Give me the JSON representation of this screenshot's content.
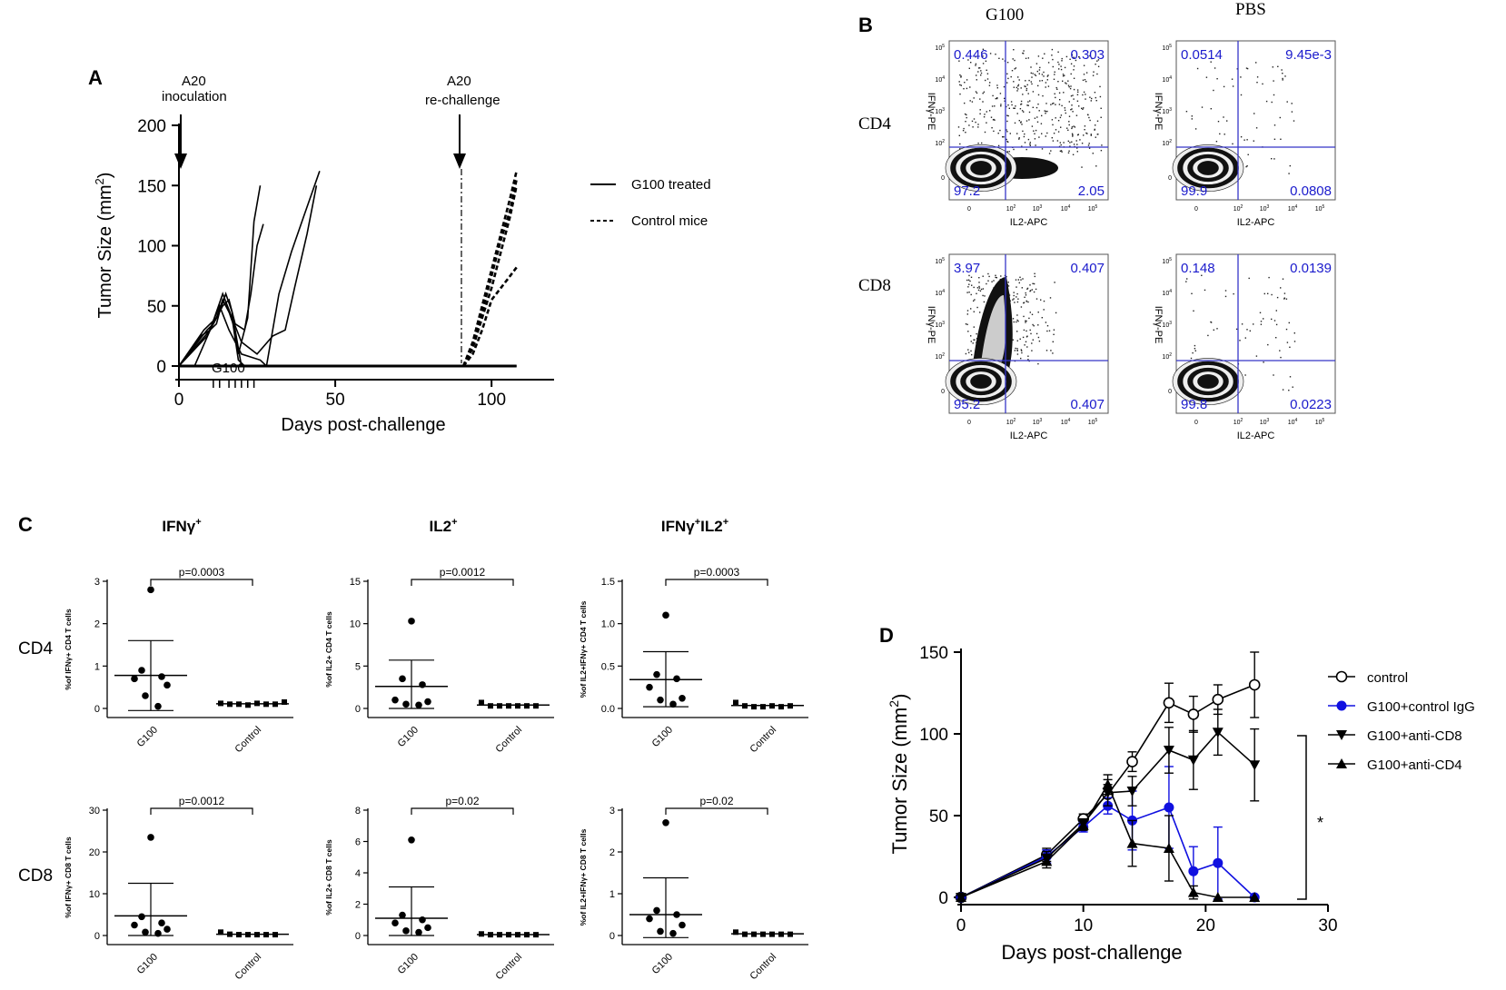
{
  "panels": {
    "A": {
      "letter": "A",
      "annotations": {
        "inoculation_line1": "A20",
        "inoculation_line2": "inoculation",
        "rechallenge_line1": "A20",
        "rechallenge_line2": "re-challenge",
        "treatment": "G100"
      },
      "legend": [
        {
          "label": "G100 treated",
          "style": "solid"
        },
        {
          "label": "Control mice",
          "style": "dashed"
        }
      ],
      "chart_data": {
        "type": "line",
        "xlabel": "Days post-challenge",
        "ylabel": "Tumor Size (mm2)",
        "ylabel_main": "Tumor Size (mm",
        "ylabel_sup": "2",
        "ylabel_end": ")",
        "xlim": [
          0,
          120
        ],
        "ylim": [
          0,
          200
        ],
        "xticks": [
          0,
          50,
          100
        ],
        "yticks": [
          0,
          50,
          100,
          150,
          200
        ],
        "treatment_days": [
          11,
          13,
          16,
          18,
          20,
          22,
          24
        ],
        "inoculation_day": 0,
        "rechallenge_day": 91,
        "series": [
          {
            "name": "G100 treated",
            "style": "solid",
            "x": [
              0,
              5,
              10,
              12,
              14,
              16,
              18,
              20,
              25,
              30,
              35,
              40,
              108
            ],
            "y": [
              0,
              0,
              30,
              40,
              55,
              45,
              30,
              0,
              0,
              0,
              0,
              0,
              0
            ]
          },
          {
            "name": "G100 treated",
            "style": "solid",
            "x": [
              0,
              7,
              10,
              12,
              14,
              17,
              19,
              21,
              24
            ],
            "y": [
              0,
              25,
              30,
              35,
              55,
              40,
              5,
              0,
              0
            ]
          },
          {
            "name": "G100 treated",
            "style": "solid",
            "x": [
              0,
              9,
              11,
              13,
              15,
              17,
              19,
              22,
              24,
              26
            ],
            "y": [
              0,
              30,
              35,
              45,
              60,
              45,
              10,
              40,
              120,
              150
            ]
          },
          {
            "name": "G100 treated",
            "style": "solid",
            "x": [
              0,
              8,
              12,
              14,
              16,
              18,
              21,
              23,
              25,
              27
            ],
            "y": [
              0,
              30,
              40,
              50,
              55,
              35,
              30,
              60,
              100,
              118
            ]
          },
          {
            "name": "G100 treated",
            "style": "solid",
            "x": [
              0,
              10,
              14,
              17,
              20,
              25,
              30,
              34,
              37,
              41,
              44
            ],
            "y": [
              0,
              30,
              60,
              40,
              20,
              10,
              25,
              30,
              65,
              110,
              150
            ]
          },
          {
            "name": "G100 treated",
            "style": "solid",
            "x": [
              0,
              9,
              13,
              16,
              20,
              26,
              28,
              32,
              36,
              40,
              45
            ],
            "y": [
              0,
              25,
              50,
              30,
              10,
              5,
              0,
              60,
              95,
              125,
              162
            ]
          },
          {
            "name": "Control mice",
            "style": "dashed",
            "x": [
              91,
              94,
              97,
              100,
              103,
              106,
              108
            ],
            "y": [
              0,
              20,
              50,
              80,
              110,
              140,
              162
            ]
          },
          {
            "name": "Control mice",
            "style": "dashed",
            "x": [
              91,
              94,
              97,
              100,
              103,
              106,
              108
            ],
            "y": [
              0,
              15,
              40,
              65,
              95,
              125,
              150
            ]
          },
          {
            "name": "Control mice",
            "style": "dashed",
            "x": [
              91,
              94,
              97,
              100,
              103,
              106,
              108
            ],
            "y": [
              0,
              10,
              30,
              55,
              65,
              75,
              82
            ]
          },
          {
            "name": "Control mice",
            "style": "dashed",
            "x": [
              91,
              94,
              97,
              100,
              103,
              106,
              108
            ],
            "y": [
              0,
              18,
              45,
              75,
              105,
              130,
              155
            ]
          }
        ]
      }
    },
    "B": {
      "letter": "B",
      "col_headers": [
        "G100",
        "PBS"
      ],
      "row_headers": [
        "CD4",
        "CD8"
      ],
      "xaxis": "IL2-APC",
      "yaxis": "IFNγ-PE",
      "tick_base": "10",
      "tick_exponents": [
        "2",
        "3",
        "4",
        "5"
      ],
      "tick_zero": "0",
      "plots": [
        {
          "row": "CD4",
          "col": "G100",
          "ul": "0.446",
          "ur": "0.303",
          "ll": "97.2",
          "lr": "2.05"
        },
        {
          "row": "CD4",
          "col": "PBS",
          "ul": "0.0514",
          "ur": "9.45e-3",
          "ll": "99.9",
          "lr": "0.0808"
        },
        {
          "row": "CD8",
          "col": "G100",
          "ul": "3.97",
          "ur": "0.407",
          "ll": "95.2",
          "lr": "0.407"
        },
        {
          "row": "CD8",
          "col": "PBS",
          "ul": "0.148",
          "ur": "0.0139",
          "ll": "99.8",
          "lr": "0.0223"
        }
      ]
    },
    "C": {
      "letter": "C",
      "col_titles": [
        {
          "main": "IFNγ",
          "sup": "+",
          "main2": "",
          "sup2": ""
        },
        {
          "main": "IL2",
          "sup": "+",
          "main2": "",
          "sup2": ""
        },
        {
          "main": "IFNγ",
          "sup": "+",
          "main2": "IL2",
          "sup2": "+"
        }
      ],
      "row_labels": [
        "CD4",
        "CD8"
      ],
      "chart_data": [
        {
          "type": "scatter",
          "row": "CD4",
          "col": 0,
          "ylabel": "%of IFNγ+ CD4 T cells",
          "yticks": [
            "0",
            "1",
            "2",
            "3"
          ],
          "ylim": [
            0,
            3
          ],
          "p": "p=0.0003",
          "categories": [
            "G100",
            "Control"
          ],
          "G100": [
            2.8,
            0.9,
            0.75,
            0.7,
            0.55,
            0.3,
            0.05
          ],
          "G100_mean": 0.78,
          "G100_sd": [
            -0.05,
            1.6
          ],
          "Control": [
            0.12,
            0.1,
            0.1,
            0.08,
            0.12,
            0.1,
            0.1,
            0.15
          ],
          "Control_mean": 0.11
        },
        {
          "type": "scatter",
          "row": "CD4",
          "col": 1,
          "ylabel": "%of IL2+ CD4 T cells",
          "yticks": [
            "0",
            "5",
            "10",
            "15"
          ],
          "ylim": [
            0,
            15
          ],
          "p": "p=0.0012",
          "categories": [
            "G100",
            "Control"
          ],
          "G100": [
            10.3,
            3.5,
            2.8,
            1.0,
            0.8,
            0.5,
            0.4
          ],
          "G100_mean": 2.6,
          "G100_sd": [
            0,
            5.7
          ],
          "Control": [
            0.7,
            0.3,
            0.3,
            0.3,
            0.3,
            0.3,
            0.3
          ],
          "Control_mean": 0.4
        },
        {
          "type": "scatter",
          "row": "CD4",
          "col": 2,
          "ylabel": "%of IL2+IFNγ+ CD4 T cells",
          "yticks": [
            "0.0",
            "0.5",
            "1.0",
            "1.5"
          ],
          "ylim": [
            0,
            1.5
          ],
          "p": "p=0.0003",
          "categories": [
            "G100",
            "Control"
          ],
          "G100": [
            1.1,
            0.4,
            0.35,
            0.25,
            0.12,
            0.1,
            0.05
          ],
          "G100_mean": 0.34,
          "G100_sd": [
            0.02,
            0.67
          ],
          "Control": [
            0.07,
            0.03,
            0.02,
            0.02,
            0.03,
            0.02,
            0.03
          ],
          "Control_mean": 0.035
        },
        {
          "type": "scatter",
          "row": "CD8",
          "col": 0,
          "ylabel": "%of IFNγ+ CD8 T cells",
          "yticks": [
            "0",
            "10",
            "20",
            "30"
          ],
          "ylim": [
            0,
            30
          ],
          "p": "p=0.0012",
          "categories": [
            "G100",
            "Control"
          ],
          "G100": [
            23.5,
            4.5,
            3.0,
            2.5,
            1.5,
            0.8,
            0.5
          ],
          "G100_mean": 4.7,
          "G100_sd": [
            0,
            12.5
          ],
          "Control": [
            0.8,
            0.3,
            0.2,
            0.2,
            0.2,
            0.2,
            0.2
          ],
          "Control_mean": 0.3
        },
        {
          "type": "scatter",
          "row": "CD8",
          "col": 1,
          "ylabel": "%of IL2+ CD8 T cells",
          "yticks": [
            "0",
            "2",
            "4",
            "6",
            "8"
          ],
          "ylim": [
            0,
            8
          ],
          "p": "p=0.02",
          "categories": [
            "G100",
            "Control"
          ],
          "G100": [
            6.1,
            1.3,
            1.0,
            0.8,
            0.5,
            0.3,
            0.2
          ],
          "G100_mean": 1.1,
          "G100_sd": [
            0,
            3.1
          ],
          "Control": [
            0.1,
            0.05,
            0.05,
            0.05,
            0.05,
            0.05,
            0.05
          ],
          "Control_mean": 0.06
        },
        {
          "type": "scatter",
          "row": "CD8",
          "col": 2,
          "ylabel": "%of IL2+IFNγ+ CD8 T cells",
          "yticks": [
            "0",
            "1",
            "2",
            "3"
          ],
          "ylim": [
            0,
            3
          ],
          "p": "p=0.02",
          "categories": [
            "G100",
            "Control"
          ],
          "G100": [
            2.7,
            0.6,
            0.5,
            0.4,
            0.25,
            0.1,
            0.05
          ],
          "G100_mean": 0.5,
          "G100_sd": [
            -0.05,
            1.38
          ],
          "Control": [
            0.08,
            0.03,
            0.03,
            0.03,
            0.03,
            0.03,
            0.03
          ],
          "Control_mean": 0.04
        }
      ]
    },
    "D": {
      "letter": "D",
      "significance": "*",
      "chart_data": {
        "type": "line",
        "xlabel": "Days post-challenge",
        "ylabel_main": "Tumor Size (mm",
        "ylabel_sup": "2",
        "ylabel_end": ")",
        "xlim": [
          0,
          30
        ],
        "ylim": [
          0,
          150
        ],
        "xticks": [
          0,
          10,
          20,
          30
        ],
        "yticks": [
          0,
          50,
          100,
          150
        ],
        "series": [
          {
            "name": "control",
            "marker": "open-circle",
            "color": "#000000",
            "x": [
              0,
              7,
              10,
              12,
              14,
              17,
              19,
              21,
              24
            ],
            "y": [
              0,
              26,
              48,
              63,
              83,
              119,
              112,
              121,
              130
            ],
            "err": [
              0,
              4,
              3,
              6,
              6,
              12,
              11,
              9,
              20
            ]
          },
          {
            "name": "G100+control IgG",
            "marker": "filled-circle",
            "color": "#1010e0",
            "x": [
              0,
              7,
              10,
              12,
              14,
              17,
              19,
              21,
              24
            ],
            "y": [
              0,
              25,
              43,
              56,
              47,
              55,
              16,
              21,
              0
            ],
            "err": [
              0,
              4,
              3,
              5,
              18,
              25,
              15,
              22,
              0
            ]
          },
          {
            "name": "G100+anti-CD8",
            "marker": "down-triangle",
            "color": "#000000",
            "x": [
              0,
              7,
              10,
              12,
              14,
              17,
              19,
              21,
              24
            ],
            "y": [
              0,
              24,
              45,
              64,
              65,
              90,
              84,
              101,
              81
            ],
            "err": [
              0,
              4,
              3,
              8,
              9,
              14,
              18,
              14,
              22
            ]
          },
          {
            "name": "G100+anti-CD4",
            "marker": "up-triangle",
            "color": "#000000",
            "x": [
              0,
              7,
              10,
              12,
              14,
              17,
              19,
              21,
              24
            ],
            "y": [
              0,
              22,
              44,
              69,
              33,
              30,
              3,
              0,
              0
            ],
            "err": [
              0,
              4,
              3,
              6,
              14,
              20,
              4,
              0,
              0
            ]
          }
        ]
      }
    }
  },
  "colors": {
    "flow_text": "#1a1acc",
    "flow_gate": "#3535c8",
    "ink": "#000000"
  }
}
